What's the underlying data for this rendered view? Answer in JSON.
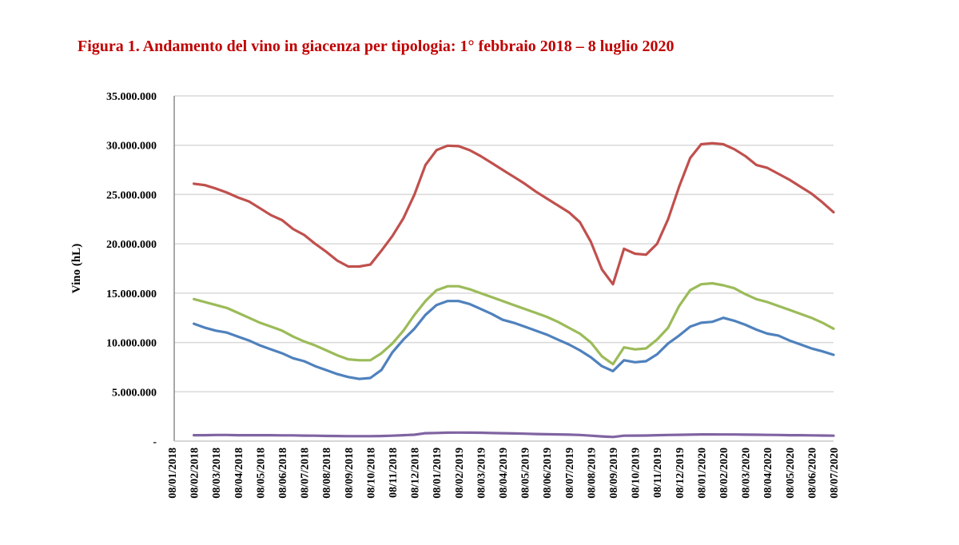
{
  "chart_data": {
    "type": "line",
    "title": "Figura 1. Andamento del vino in giacenza per tipologia: 1° febbraio 2018 – 8 luglio 2020",
    "title_color": "#C00000",
    "xlabel": "",
    "ylabel": "Vino (hL)",
    "ylim": [
      0,
      35000000
    ],
    "grid": true,
    "legend": "none",
    "y_ticks": [
      {
        "value": 0,
        "label": "-"
      },
      {
        "value": 5000000,
        "label": "5.000.000"
      },
      {
        "value": 10000000,
        "label": "10.000.000"
      },
      {
        "value": 15000000,
        "label": "15.000.000"
      },
      {
        "value": 20000000,
        "label": "20.000.000"
      },
      {
        "value": 25000000,
        "label": "25.000.000"
      },
      {
        "value": 30000000,
        "label": "30.000.000"
      },
      {
        "value": 35000000,
        "label": "35.000.000"
      }
    ],
    "x_tick_labels": [
      "08/01/2018",
      "08/02/2018",
      "08/03/2018",
      "08/04/2018",
      "08/05/2018",
      "08/06/2018",
      "08/07/2018",
      "08/08/2018",
      "08/09/2018",
      "08/10/2018",
      "08/11/2018",
      "08/12/2018",
      "08/01/2019",
      "08/02/2019",
      "08/03/2019",
      "08/04/2019",
      "08/05/2019",
      "08/06/2019",
      "08/07/2019",
      "08/08/2019",
      "08/09/2019",
      "08/10/2019",
      "08/11/2019",
      "08/12/2019",
      "08/01/2020",
      "08/02/2020",
      "08/03/2020",
      "08/04/2020",
      "08/05/2020",
      "08/06/2020",
      "08/07/2020"
    ],
    "x": [
      "08/02/2018",
      "23/02/2018",
      "08/03/2018",
      "23/03/2018",
      "08/04/2018",
      "23/04/2018",
      "08/05/2018",
      "23/05/2018",
      "08/06/2018",
      "23/06/2018",
      "08/07/2018",
      "23/07/2018",
      "08/08/2018",
      "23/08/2018",
      "08/09/2018",
      "23/09/2018",
      "08/10/2018",
      "23/10/2018",
      "08/11/2018",
      "23/11/2018",
      "08/12/2018",
      "23/12/2018",
      "08/01/2019",
      "23/01/2019",
      "08/02/2019",
      "23/02/2019",
      "08/03/2019",
      "23/03/2019",
      "08/04/2019",
      "23/04/2019",
      "08/05/2019",
      "23/05/2019",
      "08/06/2019",
      "23/06/2019",
      "08/07/2019",
      "23/07/2019",
      "08/08/2019",
      "23/08/2019",
      "08/09/2019",
      "23/09/2019",
      "08/10/2019",
      "23/10/2019",
      "08/11/2019",
      "23/11/2019",
      "08/12/2019",
      "23/12/2019",
      "08/01/2020",
      "23/01/2020",
      "08/02/2020",
      "23/02/2020",
      "08/03/2020",
      "23/03/2020",
      "08/04/2020",
      "23/04/2020",
      "08/05/2020",
      "23/05/2020",
      "08/06/2020",
      "23/06/2020",
      "08/07/2020"
    ],
    "series": [
      {
        "color": "#C0504D",
        "values": [
          26100000,
          25950000,
          25600000,
          25200000,
          24700000,
          24300000,
          23600000,
          22900000,
          22400000,
          21500000,
          20900000,
          20000000,
          19200000,
          18300000,
          17700000,
          17700000,
          17900000,
          19300000,
          20800000,
          22600000,
          25000000,
          28000000,
          29500000,
          29950000,
          29900000,
          29500000,
          28900000,
          28200000,
          27500000,
          26800000,
          26100000,
          25300000,
          24600000,
          23900000,
          23200000,
          22200000,
          20200000,
          17400000,
          15900000,
          19500000,
          19000000,
          18900000,
          20000000,
          22500000,
          25800000,
          28700000,
          30100000,
          30200000,
          30100000,
          29600000,
          28900000,
          28000000,
          27700000,
          27100000,
          26500000,
          25800000,
          25100000,
          24200000,
          23200000
        ]
      },
      {
        "color": "#9BBB59",
        "values": [
          14400000,
          14100000,
          13800000,
          13500000,
          13000000,
          12500000,
          12000000,
          11600000,
          11200000,
          10600000,
          10100000,
          9700000,
          9200000,
          8700000,
          8300000,
          8200000,
          8200000,
          8900000,
          9900000,
          11200000,
          12800000,
          14200000,
          15300000,
          15700000,
          15700000,
          15400000,
          15000000,
          14600000,
          14200000,
          13800000,
          13400000,
          13000000,
          12600000,
          12100000,
          11500000,
          10900000,
          10000000,
          8600000,
          7800000,
          9500000,
          9300000,
          9400000,
          10300000,
          11500000,
          13700000,
          15300000,
          15900000,
          16000000,
          15800000,
          15500000,
          14900000,
          14400000,
          14100000,
          13700000,
          13300000,
          12900000,
          12500000,
          12000000,
          11400000
        ]
      },
      {
        "color": "#4F81BD",
        "values": [
          11900000,
          11500000,
          11200000,
          11000000,
          10600000,
          10200000,
          9700000,
          9300000,
          8900000,
          8400000,
          8100000,
          7600000,
          7200000,
          6800000,
          6500000,
          6300000,
          6400000,
          7200000,
          9000000,
          10300000,
          11400000,
          12800000,
          13800000,
          14200000,
          14200000,
          13900000,
          13400000,
          12900000,
          12300000,
          12000000,
          11600000,
          11200000,
          10800000,
          10300000,
          9800000,
          9200000,
          8500000,
          7600000,
          7100000,
          8200000,
          8000000,
          8100000,
          8800000,
          9900000,
          10700000,
          11600000,
          12000000,
          12100000,
          12500000,
          12200000,
          11800000,
          11300000,
          10900000,
          10700000,
          10200000,
          9800000,
          9400000,
          9100000,
          8750000
        ]
      },
      {
        "color": "#8064A2",
        "values": [
          600000,
          600000,
          620000,
          620000,
          600000,
          600000,
          600000,
          600000,
          580000,
          580000,
          560000,
          550000,
          530000,
          520000,
          500000,
          500000,
          500000,
          520000,
          550000,
          600000,
          650000,
          800000,
          830000,
          860000,
          870000,
          860000,
          850000,
          820000,
          800000,
          780000,
          750000,
          720000,
          700000,
          680000,
          660000,
          620000,
          550000,
          480000,
          420000,
          550000,
          560000,
          570000,
          600000,
          620000,
          640000,
          660000,
          680000,
          680000,
          670000,
          670000,
          660000,
          650000,
          630000,
          620000,
          600000,
          600000,
          580000,
          570000,
          550000
        ]
      }
    ]
  }
}
